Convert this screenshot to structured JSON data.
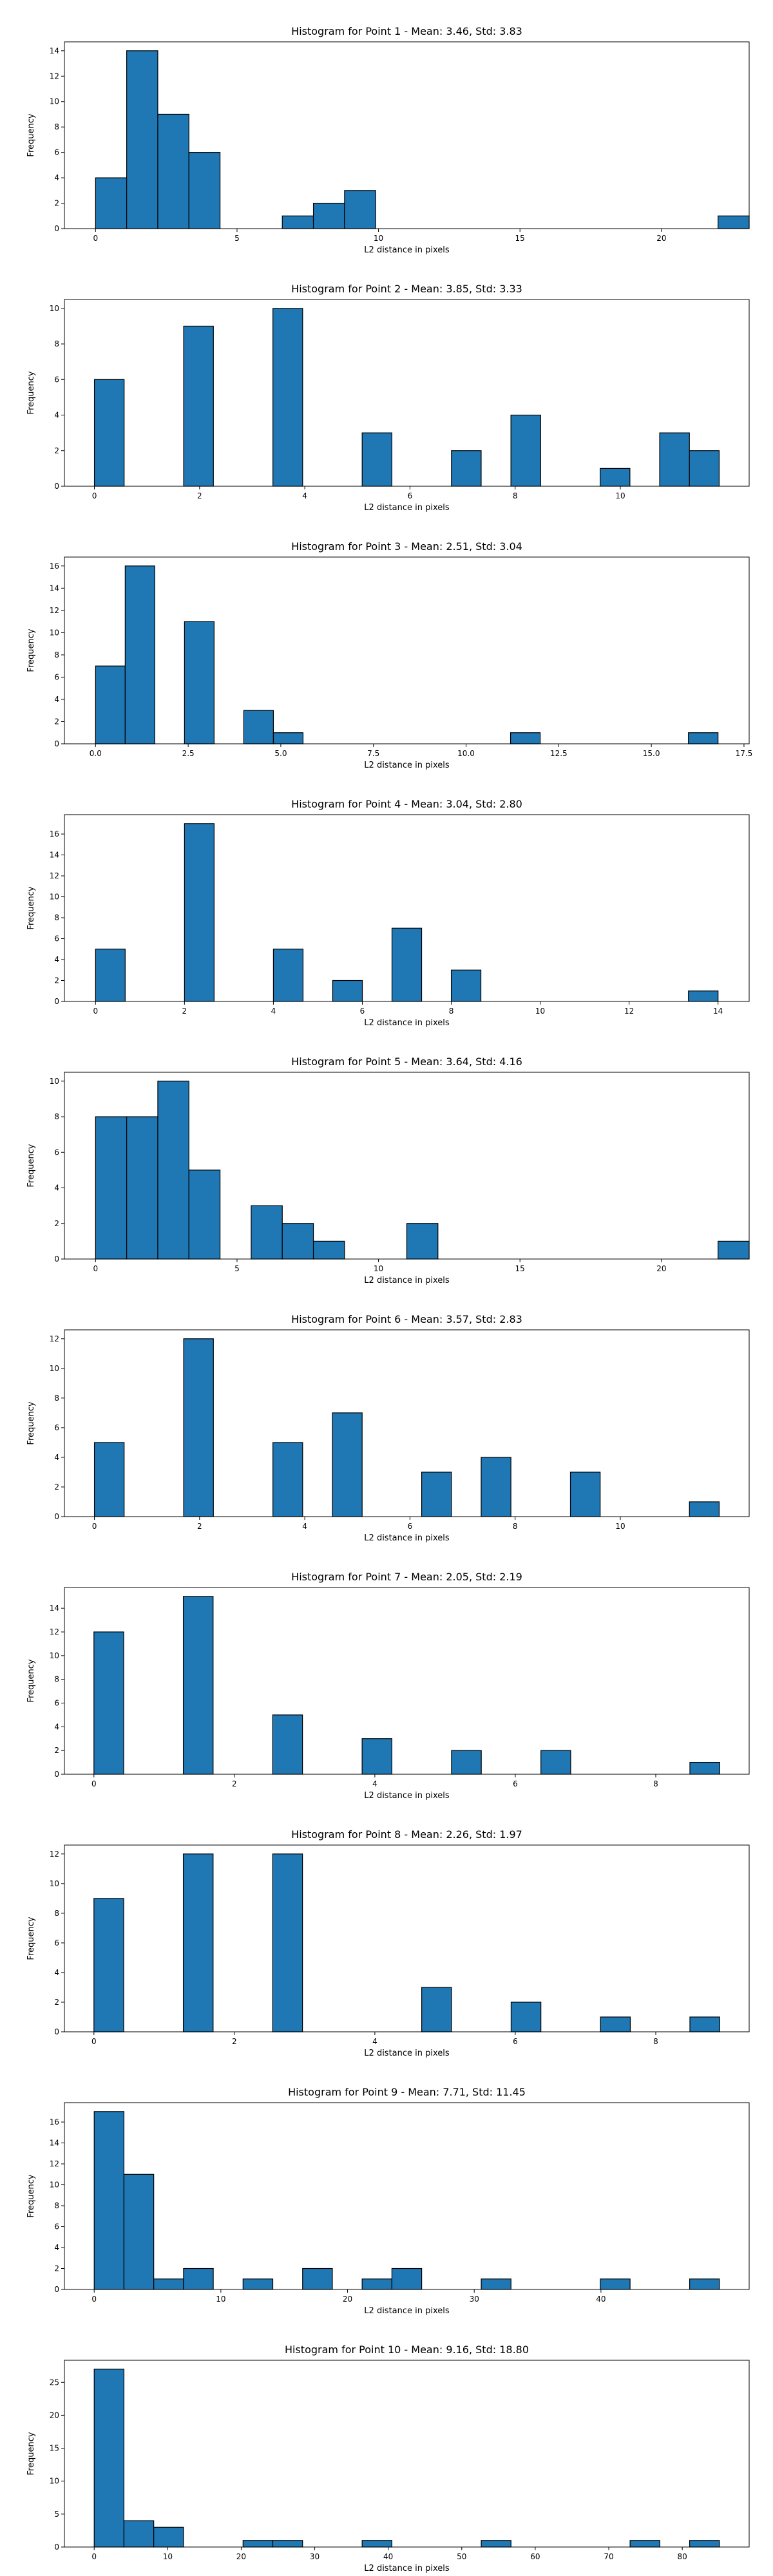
{
  "chart_data": [
    {
      "type": "bar",
      "title": "Histogram for Point 1 - Mean: 3.46, Std: 3.83",
      "xlabel": "L2 distance in pixels",
      "ylabel": "Frequency",
      "bin_start": 0,
      "bin_width": 1.1,
      "counts": [
        4,
        14,
        9,
        6,
        0,
        0,
        1,
        2,
        3,
        0,
        0,
        0,
        0,
        0,
        0,
        0,
        0,
        0,
        0,
        0,
        1
      ],
      "xlim": [
        -1.1,
        23.1
      ],
      "ylim": [
        0,
        14.7
      ],
      "xticks": [
        0,
        5,
        10,
        15,
        20
      ],
      "yticks": [
        0,
        2,
        4,
        6,
        8,
        10,
        12,
        14
      ],
      "grid": false
    },
    {
      "type": "bar",
      "title": "Histogram for Point 2 - Mean: 3.85, Std: 3.33",
      "xlabel": "L2 distance in pixels",
      "ylabel": "Frequency",
      "bin_start": 0,
      "bin_width": 0.5657,
      "counts": [
        6,
        0,
        0,
        9,
        0,
        0,
        10,
        0,
        0,
        3,
        0,
        0,
        2,
        0,
        4,
        0,
        0,
        1,
        0,
        3,
        2
      ],
      "xlim": [
        -0.57,
        12.45
      ],
      "ylim": [
        0,
        10.5
      ],
      "xticks": [
        0,
        2,
        4,
        6,
        8,
        10
      ],
      "yticks": [
        0,
        2,
        4,
        6,
        8,
        10
      ],
      "grid": false
    },
    {
      "type": "bar",
      "title": "Histogram for Point 3 - Mean: 2.51, Std: 3.04",
      "xlabel": "L2 distance in pixels",
      "ylabel": "Frequency",
      "bin_start": 0,
      "bin_width": 0.8,
      "counts": [
        7,
        16,
        0,
        11,
        0,
        3,
        1,
        0,
        0,
        0,
        0,
        0,
        0,
        0,
        1,
        0,
        0,
        0,
        0,
        0,
        1
      ],
      "xlim": [
        -0.84,
        17.64
      ],
      "ylim": [
        0,
        16.8
      ],
      "xticks": [
        0.0,
        2.5,
        5.0,
        7.5,
        10.0,
        12.5,
        15.0,
        17.5
      ],
      "ytick_labels_decimals": 1,
      "yticks": [
        0,
        2,
        4,
        6,
        8,
        10,
        12,
        14,
        16
      ],
      "grid": false
    },
    {
      "type": "bar",
      "title": "Histogram for Point 4 - Mean: 3.04, Std: 2.80",
      "xlabel": "L2 distance in pixels",
      "ylabel": "Frequency",
      "bin_start": 0,
      "bin_width": 0.6667,
      "counts": [
        5,
        0,
        0,
        17,
        0,
        0,
        5,
        0,
        2,
        0,
        7,
        0,
        3,
        0,
        0,
        0,
        0,
        0,
        0,
        0,
        1
      ],
      "xlim": [
        -0.7,
        14.7
      ],
      "ylim": [
        0,
        17.85
      ],
      "xticks": [
        0,
        2,
        4,
        6,
        8,
        10,
        12,
        14
      ],
      "yticks": [
        0,
        2,
        4,
        6,
        8,
        10,
        12,
        14,
        16
      ],
      "grid": false
    },
    {
      "type": "bar",
      "title": "Histogram for Point 5 - Mean: 3.64, Std: 4.16",
      "xlabel": "L2 distance in pixels",
      "ylabel": "Frequency",
      "bin_start": 0,
      "bin_width": 1.1,
      "counts": [
        8,
        8,
        10,
        5,
        0,
        3,
        2,
        1,
        0,
        0,
        2,
        0,
        0,
        0,
        0,
        0,
        0,
        0,
        0,
        0,
        1
      ],
      "xlim": [
        -1.1,
        23.1
      ],
      "ylim": [
        0,
        10.5
      ],
      "xticks": [
        0,
        5,
        10,
        15,
        20
      ],
      "yticks": [
        0,
        2,
        4,
        6,
        8,
        10
      ],
      "grid": false
    },
    {
      "type": "bar",
      "title": "Histogram for Point 6 - Mean: 3.57, Std: 2.83",
      "xlabel": "L2 distance in pixels",
      "ylabel": "Frequency",
      "bin_start": 0,
      "bin_width": 0.5657,
      "counts": [
        5,
        0,
        0,
        12,
        0,
        0,
        5,
        0,
        7,
        0,
        0,
        3,
        0,
        4,
        0,
        0,
        3,
        0,
        0,
        0,
        1
      ],
      "xlim": [
        -0.57,
        12.45
      ],
      "ylim": [
        0,
        12.6
      ],
      "xticks": [
        0,
        2,
        4,
        6,
        8,
        10
      ],
      "yticks": [
        0,
        2,
        4,
        6,
        8,
        10,
        12
      ],
      "grid": false
    },
    {
      "type": "bar",
      "title": "Histogram for Point 7 - Mean: 2.05, Std: 2.19",
      "xlabel": "L2 distance in pixels",
      "ylabel": "Frequency",
      "bin_start": 0,
      "bin_width": 0.4243,
      "counts": [
        12,
        0,
        0,
        15,
        0,
        0,
        5,
        0,
        0,
        3,
        0,
        0,
        2,
        0,
        0,
        2,
        0,
        0,
        0,
        0,
        1
      ],
      "xlim": [
        -0.42,
        9.33
      ],
      "ylim": [
        0,
        15.75
      ],
      "xticks": [
        0,
        2,
        4,
        6,
        8
      ],
      "yticks": [
        0,
        2,
        4,
        6,
        8,
        10,
        12,
        14
      ],
      "grid": false
    },
    {
      "type": "bar",
      "title": "Histogram for Point 8 - Mean: 2.26, Std: 1.97",
      "xlabel": "L2 distance in pixels",
      "ylabel": "Frequency",
      "bin_start": 0,
      "bin_width": 0.4243,
      "counts": [
        9,
        0,
        0,
        12,
        0,
        0,
        12,
        0,
        0,
        0,
        0,
        3,
        0,
        0,
        2,
        0,
        0,
        1,
        0,
        0,
        1
      ],
      "xlim": [
        -0.42,
        9.33
      ],
      "ylim": [
        0,
        12.6
      ],
      "xticks": [
        0,
        2,
        4,
        6,
        8
      ],
      "yticks": [
        0,
        2,
        4,
        6,
        8,
        10,
        12
      ],
      "grid": false
    },
    {
      "type": "bar",
      "title": "Histogram for Point 9 - Mean: 7.71, Std: 11.45",
      "xlabel": "L2 distance in pixels",
      "ylabel": "Frequency",
      "bin_start": 0,
      "bin_width": 2.35,
      "counts": [
        17,
        11,
        1,
        2,
        0,
        1,
        0,
        2,
        0,
        1,
        2,
        0,
        0,
        1,
        0,
        0,
        0,
        1,
        0,
        0,
        1
      ],
      "xlim": [
        -2.35,
        51.7
      ],
      "ylim": [
        0,
        17.85
      ],
      "xticks": [
        0,
        10,
        20,
        30,
        40
      ],
      "yticks": [
        0,
        2,
        4,
        6,
        8,
        10,
        12,
        14,
        16
      ],
      "grid": false
    },
    {
      "type": "bar",
      "title": "Histogram for Point 10 - Mean: 9.16, Std: 18.80",
      "xlabel": "L2 distance in pixels",
      "ylabel": "Frequency",
      "bin_start": 0,
      "bin_width": 4.05,
      "counts": [
        27,
        4,
        3,
        0,
        0,
        1,
        1,
        0,
        0,
        1,
        0,
        0,
        0,
        1,
        0,
        0,
        0,
        0,
        1,
        0,
        1
      ],
      "xlim": [
        -4.05,
        89.1
      ],
      "ylim": [
        0,
        28.35
      ],
      "xticks": [
        0,
        10,
        20,
        30,
        40,
        50,
        60,
        70,
        80
      ],
      "yticks": [
        0,
        5,
        10,
        15,
        20,
        25
      ],
      "grid": false
    }
  ]
}
